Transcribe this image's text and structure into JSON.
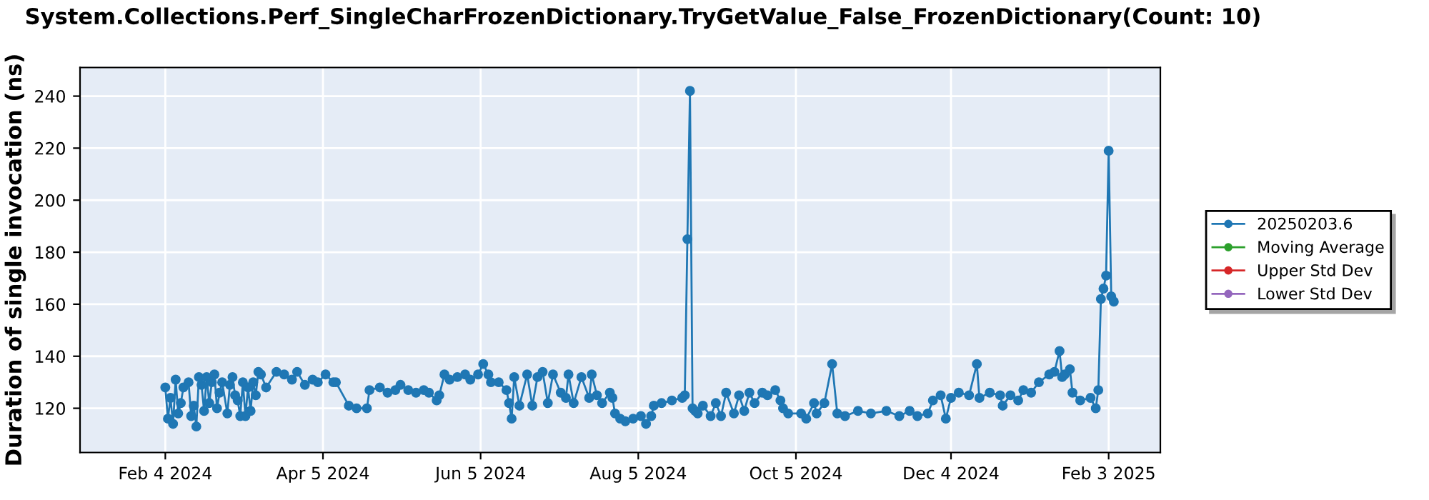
{
  "chart_data": {
    "type": "line",
    "title": "System.Collections.Perf_SingleCharFrozenDictionary.TryGetValue_False_FrozenDictionary(Count: 10)",
    "ylabel": "Duration of single invocation (ns)",
    "xlim": [
      "2024-01-02",
      "2025-02-23"
    ],
    "ylim": [
      103,
      251
    ],
    "xticks": [
      {
        "value": "2024-02-04",
        "label": "Feb 4 2024"
      },
      {
        "value": "2024-04-05",
        "label": "Apr 5 2024"
      },
      {
        "value": "2024-06-05",
        "label": "Jun 5 2024"
      },
      {
        "value": "2024-08-05",
        "label": "Aug 5 2024"
      },
      {
        "value": "2024-10-05",
        "label": "Oct 5 2024"
      },
      {
        "value": "2024-12-04",
        "label": "Dec 4 2024"
      },
      {
        "value": "2025-02-03",
        "label": "Feb 3 2025"
      }
    ],
    "yticks": [
      120,
      140,
      160,
      180,
      200,
      220,
      240
    ],
    "grid": true,
    "legend": "right",
    "marker": "circle",
    "line_style": "solid",
    "series": [
      {
        "name": "20250203.6",
        "color": "#1f77b4",
        "x": [
          "2024-02-04",
          "2024-02-05",
          "2024-02-06",
          "2024-02-07",
          "2024-02-08",
          "2024-02-09",
          "2024-02-10",
          "2024-02-11",
          "2024-02-13",
          "2024-02-14",
          "2024-02-15",
          "2024-02-16",
          "2024-02-17",
          "2024-02-18",
          "2024-02-19",
          "2024-02-20",
          "2024-02-21",
          "2024-02-22",
          "2024-02-23",
          "2024-02-24",
          "2024-02-25",
          "2024-02-26",
          "2024-02-28",
          "2024-02-29",
          "2024-03-01",
          "2024-03-02",
          "2024-03-03",
          "2024-03-04",
          "2024-03-05",
          "2024-03-06",
          "2024-03-07",
          "2024-03-08",
          "2024-03-09",
          "2024-03-10",
          "2024-03-11",
          "2024-03-12",
          "2024-03-14",
          "2024-03-18",
          "2024-03-21",
          "2024-03-24",
          "2024-03-26",
          "2024-03-29",
          "2024-04-01",
          "2024-04-03",
          "2024-04-06",
          "2024-04-09",
          "2024-04-10",
          "2024-04-15",
          "2024-04-18",
          "2024-04-22",
          "2024-04-23",
          "2024-04-27",
          "2024-04-30",
          "2024-05-03",
          "2024-05-05",
          "2024-05-08",
          "2024-05-11",
          "2024-05-14",
          "2024-05-16",
          "2024-05-19",
          "2024-05-20",
          "2024-05-22",
          "2024-05-24",
          "2024-05-27",
          "2024-05-30",
          "2024-06-01",
          "2024-06-04",
          "2024-06-06",
          "2024-06-08",
          "2024-06-09",
          "2024-06-12",
          "2024-06-15",
          "2024-06-16",
          "2024-06-17",
          "2024-06-18",
          "2024-06-20",
          "2024-06-23",
          "2024-06-25",
          "2024-06-27",
          "2024-06-29",
          "2024-07-01",
          "2024-07-03",
          "2024-07-06",
          "2024-07-08",
          "2024-07-09",
          "2024-07-11",
          "2024-07-14",
          "2024-07-17",
          "2024-07-18",
          "2024-07-20",
          "2024-07-22",
          "2024-07-25",
          "2024-07-26",
          "2024-07-27",
          "2024-07-29",
          "2024-07-31",
          "2024-08-03",
          "2024-08-06",
          "2024-08-08",
          "2024-08-10",
          "2024-08-11",
          "2024-08-14",
          "2024-08-18",
          "2024-08-22",
          "2024-08-23",
          "2024-08-24",
          "2024-08-25",
          "2024-08-26",
          "2024-08-27",
          "2024-08-28",
          "2024-08-30",
          "2024-09-02",
          "2024-09-04",
          "2024-09-06",
          "2024-09-08",
          "2024-09-11",
          "2024-09-13",
          "2024-09-15",
          "2024-09-17",
          "2024-09-19",
          "2024-09-22",
          "2024-09-24",
          "2024-09-27",
          "2024-09-29",
          "2024-09-30",
          "2024-10-02",
          "2024-10-07",
          "2024-10-09",
          "2024-10-12",
          "2024-10-13",
          "2024-10-16",
          "2024-10-19",
          "2024-10-21",
          "2024-10-24",
          "2024-10-29",
          "2024-11-03",
          "2024-11-09",
          "2024-11-14",
          "2024-11-18",
          "2024-11-21",
          "2024-11-25",
          "2024-11-27",
          "2024-11-30",
          "2024-12-02",
          "2024-12-04",
          "2024-12-07",
          "2024-12-11",
          "2024-12-14",
          "2024-12-15",
          "2024-12-19",
          "2024-12-23",
          "2024-12-24",
          "2024-12-27",
          "2024-12-30",
          "2025-01-01",
          "2025-01-04",
          "2025-01-07",
          "2025-01-11",
          "2025-01-13",
          "2025-01-15",
          "2025-01-16",
          "2025-01-17",
          "2025-01-19",
          "2025-01-20",
          "2025-01-23",
          "2025-01-27",
          "2025-01-29",
          "2025-01-30",
          "2025-01-31",
          "2025-02-01",
          "2025-02-02",
          "2025-02-03",
          "2025-02-04",
          "2025-02-05"
        ],
        "values": [
          128,
          116,
          124,
          114,
          131,
          118,
          122,
          128,
          130,
          117,
          121,
          113,
          132,
          129,
          119,
          132,
          122,
          130,
          133,
          120,
          126,
          130,
          118,
          129,
          132,
          125,
          123,
          117,
          130,
          117,
          128,
          119,
          130,
          125,
          134,
          133,
          128,
          134,
          133,
          131,
          134,
          129,
          131,
          130,
          133,
          130,
          130,
          121,
          120,
          120,
          127,
          128,
          126,
          127,
          129,
          127,
          126,
          127,
          126,
          123,
          125,
          133,
          131,
          132,
          133,
          131,
          133,
          137,
          133,
          130,
          130,
          127,
          122,
          116,
          132,
          121,
          133,
          121,
          132,
          134,
          122,
          133,
          126,
          124,
          133,
          122,
          132,
          124,
          133,
          125,
          122,
          126,
          124,
          118,
          116,
          115,
          116,
          117,
          114,
          117,
          121,
          122,
          123,
          124,
          125,
          185,
          242,
          120,
          119,
          118,
          121,
          117,
          122,
          117,
          126,
          118,
          125,
          119,
          126,
          122,
          126,
          125,
          127,
          123,
          120,
          118,
          118,
          116,
          122,
          118,
          122,
          137,
          118,
          117,
          119,
          118,
          119,
          117,
          119,
          117,
          118,
          123,
          125,
          116,
          124,
          126,
          125,
          137,
          124,
          126,
          125,
          121,
          125,
          123,
          127,
          126,
          130,
          133,
          134,
          142,
          132,
          133,
          135,
          126,
          123,
          124,
          120,
          127,
          162,
          166,
          171,
          219,
          163,
          161
        ]
      },
      {
        "name": "Moving Average",
        "color": "#2ca02c"
      },
      {
        "name": "Upper Std Dev",
        "color": "#d62728"
      },
      {
        "name": "Lower Std Dev",
        "color": "#9467bd"
      }
    ]
  }
}
